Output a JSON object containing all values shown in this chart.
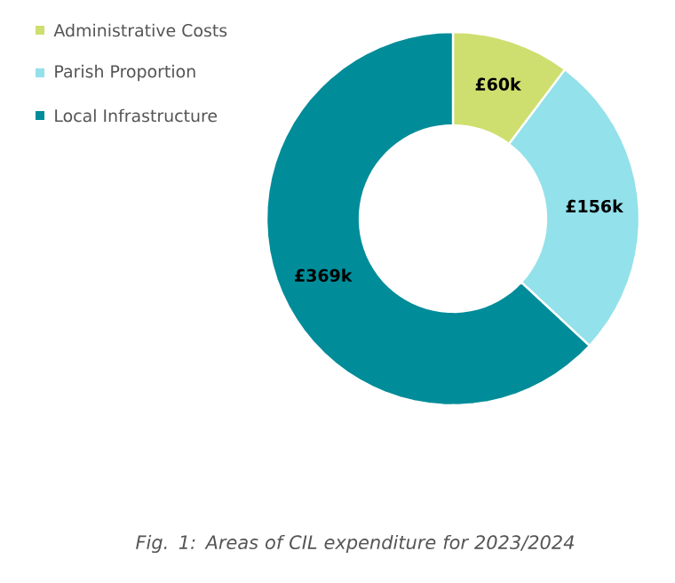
{
  "chart_data": {
    "type": "donut",
    "categories": [
      "Administrative Costs",
      "Parish Proportion",
      "Local Infrastructure"
    ],
    "values": [
      60,
      156,
      369
    ],
    "colors": [
      "#cfdf6f",
      "#93e1ea",
      "#008c99"
    ],
    "value_labels": [
      "£60k",
      "£156k",
      "£369k"
    ],
    "legend": "top left",
    "annotations": [
      "Fig. 1: Areas of CIL expenditure for 2023/2024"
    ]
  }
}
